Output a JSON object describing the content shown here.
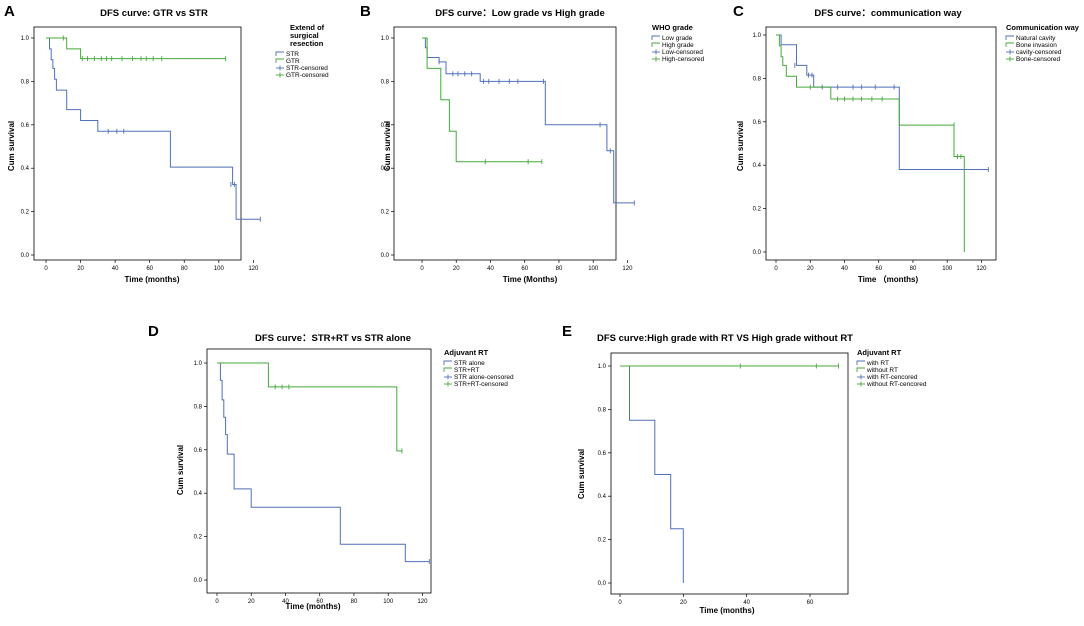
{
  "chart_data": [
    {
      "panel": "A",
      "type": "line",
      "title": "DFS curve: GTR vs STR",
      "xlabel": "Time (months)",
      "ylabel": "Cum survival",
      "xlim": [
        0,
        125
      ],
      "ylim": [
        0,
        1.0
      ],
      "xticks": [
        "0",
        "20",
        "40",
        "60",
        "80",
        "100",
        "120"
      ],
      "yticks": [
        "0.0",
        "0.2",
        "0.4",
        "0.6",
        "0.8",
        "1.0"
      ],
      "legend_title_lines": [
        "Extend of",
        "surgical",
        "resection"
      ],
      "legend": [
        "STR",
        "GTR",
        "STR-censored",
        "GTR-censored"
      ],
      "series": [
        {
          "name": "STR",
          "color": "#5070b8",
          "steps": [
            [
              0,
              1.0
            ],
            [
              2,
              0.95
            ],
            [
              3,
              0.9
            ],
            [
              4,
              0.86
            ],
            [
              5,
              0.81
            ],
            [
              6,
              0.76
            ],
            [
              12,
              0.67
            ],
            [
              20,
              0.62
            ],
            [
              30,
              0.57
            ],
            [
              72,
              0.405
            ],
            [
              108,
              0.325
            ],
            [
              110,
              0.165
            ],
            [
              124,
              0.165
            ]
          ],
          "censored": [
            [
              36,
              0.57
            ],
            [
              41,
              0.57
            ],
            [
              45,
              0.57
            ],
            [
              107,
              0.325
            ],
            [
              109,
              0.325
            ],
            [
              124,
              0.165
            ]
          ]
        },
        {
          "name": "GTR",
          "color": "#44aa3a",
          "steps": [
            [
              0,
              1.0
            ],
            [
              10,
              1.0
            ],
            [
              12,
              0.95
            ],
            [
              20,
              0.905
            ],
            [
              104,
              0.905
            ]
          ],
          "censored": [
            [
              10,
              1.0
            ],
            [
              21,
              0.905
            ],
            [
              24,
              0.905
            ],
            [
              28,
              0.905
            ],
            [
              32,
              0.905
            ],
            [
              35,
              0.905
            ],
            [
              38,
              0.905
            ],
            [
              44,
              0.905
            ],
            [
              50,
              0.905
            ],
            [
              55,
              0.905
            ],
            [
              58,
              0.905
            ],
            [
              62,
              0.905
            ],
            [
              67,
              0.905
            ],
            [
              104,
              0.905
            ]
          ]
        }
      ]
    },
    {
      "panel": "B",
      "type": "line",
      "title": "DFS curve：Low grade vs High grade",
      "xlabel": "Time (Months)",
      "ylabel": "Cum survival",
      "xlim": [
        0,
        125
      ],
      "ylim": [
        0,
        1.0
      ],
      "xticks": [
        "0",
        "20",
        "40",
        "60",
        "80",
        "100",
        "120"
      ],
      "yticks": [
        "0.0",
        "0.2",
        "0.4",
        "0.6",
        "0.8",
        "1.0"
      ],
      "legend_title_lines": [
        "WHO grade"
      ],
      "legend": [
        "Low grade",
        "High grade",
        "Low-censored",
        "High-censored"
      ],
      "series": [
        {
          "name": "Low grade",
          "color": "#5070b8",
          "steps": [
            [
              0,
              1.0
            ],
            [
              2,
              0.955
            ],
            [
              3,
              0.91
            ],
            [
              10,
              0.89
            ],
            [
              14,
              0.835
            ],
            [
              34,
              0.8
            ],
            [
              72,
              0.6
            ],
            [
              108,
              0.48
            ],
            [
              112,
              0.24
            ],
            [
              124,
              0.24
            ]
          ],
          "censored": [
            [
              10,
              0.89
            ],
            [
              18,
              0.835
            ],
            [
              21,
              0.835
            ],
            [
              25,
              0.835
            ],
            [
              29,
              0.835
            ],
            [
              36,
              0.8
            ],
            [
              39,
              0.8
            ],
            [
              45,
              0.8
            ],
            [
              51,
              0.8
            ],
            [
              56,
              0.8
            ],
            [
              71,
              0.8
            ],
            [
              104,
              0.6
            ],
            [
              110,
              0.48
            ],
            [
              124,
              0.24
            ]
          ]
        },
        {
          "name": "High grade",
          "color": "#44aa3a",
          "steps": [
            [
              0,
              1.0
            ],
            [
              3,
              0.86
            ],
            [
              11,
              0.715
            ],
            [
              16,
              0.57
            ],
            [
              20,
              0.43
            ],
            [
              70,
              0.43
            ]
          ],
          "censored": [
            [
              37,
              0.43
            ],
            [
              62,
              0.43
            ],
            [
              70,
              0.43
            ]
          ]
        }
      ]
    },
    {
      "panel": "C",
      "type": "line",
      "title": "DFS curve：communication way",
      "xlabel": "Time （months)",
      "ylabel": "Cum survival",
      "xlim": [
        0,
        125
      ],
      "ylim": [
        0,
        1.0
      ],
      "xticks": [
        "0",
        "20",
        "40",
        "60",
        "80",
        "100",
        "120"
      ],
      "yticks": [
        "0.0",
        "0.2",
        "0.4",
        "0.6",
        "0.8",
        "1.0"
      ],
      "legend_title_lines": [
        "Communication way"
      ],
      "legend": [
        "Natural cavity",
        "Bone invasion",
        "cavity-censored",
        "Bone-censored"
      ],
      "series": [
        {
          "name": "Natural cavity",
          "color": "#5070b8",
          "steps": [
            [
              0,
              1.0
            ],
            [
              3,
              0.955
            ],
            [
              12,
              0.86
            ],
            [
              18,
              0.815
            ],
            [
              22,
              0.76
            ],
            [
              72,
              0.38
            ],
            [
              124,
              0.38
            ]
          ],
          "censored": [
            [
              11,
              0.86
            ],
            [
              19,
              0.815
            ],
            [
              21,
              0.815
            ],
            [
              27,
              0.76
            ],
            [
              36,
              0.76
            ],
            [
              45,
              0.76
            ],
            [
              50,
              0.76
            ],
            [
              58,
              0.76
            ],
            [
              69,
              0.76
            ],
            [
              124,
              0.38
            ]
          ]
        },
        {
          "name": "Bone invasion",
          "color": "#44aa3a",
          "steps": [
            [
              0,
              1.0
            ],
            [
              2,
              0.95
            ],
            [
              3,
              0.9
            ],
            [
              4,
              0.86
            ],
            [
              6,
              0.81
            ],
            [
              12,
              0.76
            ],
            [
              32,
              0.705
            ],
            [
              72,
              0.585
            ],
            [
              104,
              0.44
            ],
            [
              110,
              0.0
            ]
          ],
          "censored": [
            [
              20,
              0.76
            ],
            [
              36,
              0.705
            ],
            [
              40,
              0.705
            ],
            [
              45,
              0.705
            ],
            [
              50,
              0.705
            ],
            [
              56,
              0.705
            ],
            [
              62,
              0.705
            ],
            [
              104,
              0.585
            ],
            [
              106,
              0.44
            ],
            [
              108,
              0.44
            ]
          ]
        }
      ]
    },
    {
      "panel": "D",
      "type": "line",
      "title": "DFS curve：STR+RT vs STR alone",
      "xlabel": "Time (months)",
      "ylabel": "Cum survival",
      "xlim": [
        0,
        125
      ],
      "ylim": [
        0,
        1.0
      ],
      "xticks": [
        "0",
        "20",
        "40",
        "60",
        "80",
        "100",
        "120"
      ],
      "yticks": [
        "0.0",
        "0.2",
        "0.4",
        "0.6",
        "0.8",
        "1.0"
      ],
      "legend_title_lines": [
        "Adjuvant RT"
      ],
      "legend": [
        "STR alone",
        "STR+RT",
        "STR alone-censored",
        "STR+RT-censored"
      ],
      "series": [
        {
          "name": "STR alone",
          "color": "#5070b8",
          "steps": [
            [
              0,
              1.0
            ],
            [
              2,
              0.92
            ],
            [
              3,
              0.83
            ],
            [
              4,
              0.75
            ],
            [
              5,
              0.67
            ],
            [
              6,
              0.58
            ],
            [
              10,
              0.42
            ],
            [
              20,
              0.335
            ],
            [
              72,
              0.165
            ],
            [
              110,
              0.085
            ],
            [
              124,
              0.085
            ]
          ],
          "censored": [
            [
              124,
              0.085
            ]
          ]
        },
        {
          "name": "STR+RT",
          "color": "#44aa3a",
          "steps": [
            [
              0,
              1.0
            ],
            [
              30,
              0.89
            ],
            [
              105,
              0.595
            ],
            [
              108,
              0.595
            ]
          ],
          "censored": [
            [
              34,
              0.89
            ],
            [
              38,
              0.89
            ],
            [
              42,
              0.89
            ],
            [
              108,
              0.595
            ]
          ]
        }
      ]
    },
    {
      "panel": "E",
      "type": "line",
      "title": "DFS curve:High grade with RT VS High grade without RT",
      "xlabel": "Time (months)",
      "ylabel": "Cum survival",
      "xlim": [
        0,
        72
      ],
      "ylim": [
        0,
        1.0
      ],
      "xticks": [
        "0",
        "20",
        "40",
        "60"
      ],
      "yticks": [
        "0.0",
        "0.2",
        "0.4",
        "0.6",
        "0.8",
        "1.0"
      ],
      "legend_title_lines": [
        "Adjuvant RT"
      ],
      "legend": [
        "with RT",
        "without RT",
        "with RT-cencored",
        "without RT-cencored"
      ],
      "series": [
        {
          "name": "with RT",
          "color": "#5070b8",
          "steps": [
            [
              0,
              1.0
            ],
            [
              3,
              0.75
            ],
            [
              11,
              0.5
            ],
            [
              16,
              0.25
            ],
            [
              20,
              0.0
            ]
          ],
          "censored": []
        },
        {
          "name": "without RT",
          "color": "#44aa3a",
          "steps": [
            [
              0,
              1.0
            ],
            [
              69,
              1.0
            ]
          ],
          "censored": [
            [
              38,
              1.0
            ],
            [
              62,
              1.0
            ],
            [
              69,
              1.0
            ]
          ]
        }
      ]
    }
  ]
}
